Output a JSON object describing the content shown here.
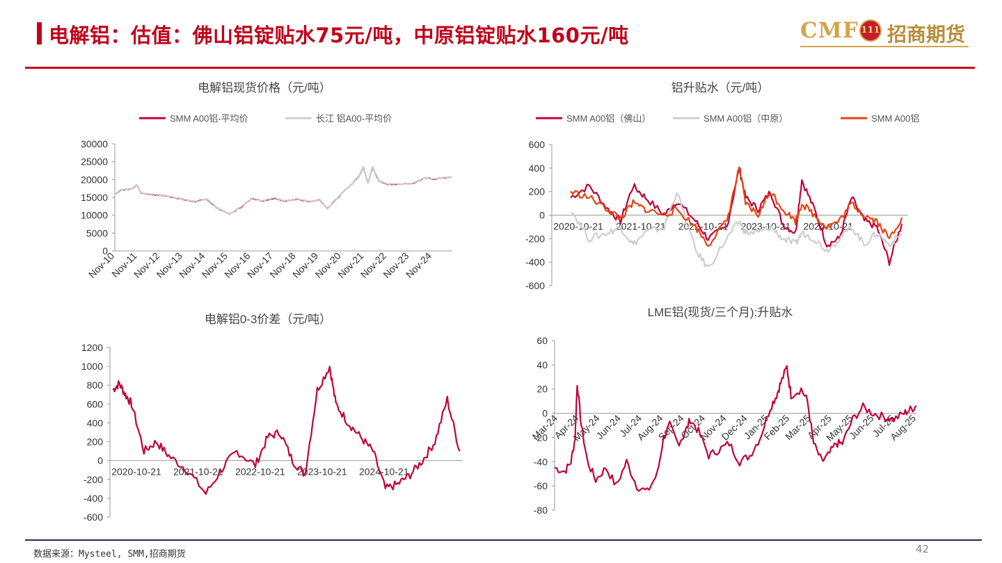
{
  "header": {
    "title": "电解铝：估值：佛山铝锭贴水75元/吨，中原铝锭贴水160元/吨"
  },
  "logo": {
    "brand": "CMF",
    "name": "招商期货"
  },
  "footer": {
    "source": "数据来源：Mysteel, SMM,招商期货",
    "page": "42"
  },
  "colors": {
    "red": "#c0003a",
    "grey": "#cfcfcf",
    "orange": "#e8410b",
    "accent": "#c0001a"
  },
  "chart_data": [
    {
      "id": "c1",
      "type": "line",
      "title": "电解铝现货价格（元/吨）",
      "x_ticks": [
        "Nov-10",
        "Nov-11",
        "Nov-12",
        "Nov-13",
        "Nov-14",
        "Nov-15",
        "Nov-16",
        "Nov-17",
        "Nov-18",
        "Nov-19",
        "Nov-20",
        "Nov-21",
        "Nov-22",
        "Nov-23",
        "Nov-24"
      ],
      "y_ticks": [
        "30000",
        "25000",
        "20000",
        "15000",
        "10000",
        "5000",
        "0"
      ],
      "ylim": [
        0,
        30000
      ],
      "series": [
        {
          "name": "SMM A00铝-平均价",
          "color": "#c0003a",
          "x": [
            2010.83,
            2011.1,
            2011.6,
            2011.8,
            2012.0,
            2012.5,
            2013.0,
            2013.6,
            2014.0,
            2014.4,
            2014.9,
            2015.3,
            2015.9,
            2016.4,
            2016.9,
            2017.3,
            2017.9,
            2018.3,
            2018.9,
            2019.4,
            2019.9,
            2020.2,
            2020.4,
            2020.9,
            2021.3,
            2021.6,
            2021.8,
            2022.0,
            2022.2,
            2022.5,
            2022.9,
            2023.3,
            2023.9,
            2024.3,
            2024.5,
            2024.9,
            2025.3,
            2025.7
          ],
          "y": [
            16000,
            17000,
            17500,
            18500,
            16200,
            15800,
            15500,
            14800,
            14200,
            13800,
            14500,
            12200,
            10300,
            12300,
            14800,
            14000,
            14800,
            14000,
            14400,
            13900,
            14200,
            11800,
            13000,
            16500,
            18800,
            21000,
            23500,
            19000,
            23500,
            19500,
            18700,
            18700,
            18800,
            19800,
            20500,
            20100,
            20500,
            20600
          ]
        },
        {
          "name": "长江 铝A00-平均价",
          "color": "#cfcfcf",
          "x": [
            2010.83,
            2011.1,
            2011.6,
            2011.8,
            2012.0,
            2012.5,
            2013.0,
            2013.6,
            2014.0,
            2014.4,
            2014.9,
            2015.3,
            2015.9,
            2016.4,
            2016.9,
            2017.3,
            2017.9,
            2018.3,
            2018.9,
            2019.4,
            2019.9,
            2020.2,
            2020.4,
            2020.9,
            2021.3,
            2021.6,
            2021.8,
            2022.0,
            2022.2,
            2022.5,
            2022.9,
            2023.3,
            2023.9,
            2024.3,
            2024.5,
            2024.9,
            2025.3,
            2025.7
          ],
          "y": [
            16050,
            17050,
            17550,
            18550,
            16250,
            15850,
            15550,
            14850,
            14250,
            13850,
            14550,
            12250,
            10350,
            12350,
            14850,
            14050,
            14850,
            14050,
            14450,
            13950,
            14250,
            11850,
            13050,
            16550,
            18850,
            21050,
            23550,
            19050,
            23550,
            19550,
            18750,
            18750,
            18850,
            19850,
            20550,
            20150,
            20550,
            20650
          ]
        }
      ]
    },
    {
      "id": "c2",
      "type": "line",
      "title": "铝升贴水（元/吨）",
      "x_ticks": [
        "2020-10-21",
        "2021-10-21",
        "2022-10-21",
        "2023-10-21",
        "2024-10-21"
      ],
      "y_ticks": [
        "600",
        "400",
        "200",
        "0",
        "-200",
        "-400",
        "-600"
      ],
      "ylim": [
        -600,
        600
      ],
      "series": [
        {
          "name": "SMM A00铝（佛山）",
          "color": "#c0003a",
          "x": [
            2020.3,
            2020.6,
            2020.9,
            2021.1,
            2021.3,
            2021.5,
            2021.8,
            2022.0,
            2022.3,
            2022.5,
            2022.8,
            2023.0,
            2023.1,
            2023.3,
            2023.5,
            2023.7,
            2023.9,
            2024.0,
            2024.2,
            2024.4,
            2024.6,
            2024.8,
            2025.0,
            2025.2,
            2025.4,
            2025.6
          ],
          "y": [
            150,
            250,
            50,
            -50,
            250,
            150,
            0,
            120,
            -50,
            -200,
            -100,
            400,
            150,
            50,
            200,
            -80,
            -150,
            300,
            50,
            -250,
            -200,
            150,
            -50,
            -100,
            -400,
            -75
          ]
        },
        {
          "name": "SMM A00铝（中原）",
          "color": "#cfcfcf",
          "x": [
            2020.3,
            2020.6,
            2020.9,
            2021.1,
            2021.3,
            2021.5,
            2021.8,
            2022.0,
            2022.3,
            2022.5,
            2022.8,
            2023.0,
            2023.1,
            2023.3,
            2023.5,
            2023.7,
            2023.9,
            2024.0,
            2024.2,
            2024.4,
            2024.6,
            2024.8,
            2025.0,
            2025.2,
            2025.4,
            2025.6
          ],
          "y": [
            50,
            -200,
            -150,
            -100,
            -250,
            -150,
            -100,
            200,
            -300,
            -450,
            -200,
            -50,
            -150,
            -150,
            -100,
            -200,
            -250,
            -150,
            -200,
            -300,
            -200,
            -100,
            -250,
            -150,
            -250,
            -160
          ]
        },
        {
          "name": "SMM A00铝",
          "color": "#e8410b",
          "x": [
            2020.3,
            2020.6,
            2020.9,
            2021.1,
            2021.3,
            2021.5,
            2021.8,
            2022.0,
            2022.3,
            2022.5,
            2022.8,
            2023.0,
            2023.1,
            2023.3,
            2023.5,
            2023.7,
            2023.9,
            2024.0,
            2024.2,
            2024.4,
            2024.6,
            2024.8,
            2025.0,
            2025.2,
            2025.4,
            2025.6
          ],
          "y": [
            200,
            150,
            50,
            -30,
            100,
            50,
            0,
            50,
            -100,
            -250,
            -50,
            400,
            100,
            0,
            200,
            50,
            -50,
            100,
            0,
            -100,
            -50,
            100,
            0,
            -50,
            -200,
            -20
          ]
        }
      ]
    },
    {
      "id": "c3",
      "type": "line",
      "title": "电解铝0-3价差（元/吨）",
      "x_ticks": [
        "2020-10-21",
        "2021-10-21",
        "2022-10-21",
        "2023-10-21",
        "2024-10-21"
      ],
      "y_ticks": [
        "1200",
        "1000",
        "800",
        "600",
        "400",
        "200",
        "0",
        "-200",
        "-400",
        "-600"
      ],
      "ylim": [
        -600,
        1200
      ],
      "series": [
        {
          "name": "0-3价差",
          "color": "#c0003a",
          "x": [
            2020.0,
            2020.1,
            2020.2,
            2020.3,
            2020.5,
            2020.7,
            2020.9,
            2021.2,
            2021.5,
            2021.8,
            2022.0,
            2022.3,
            2022.5,
            2022.7,
            2022.9,
            2023.1,
            2023.3,
            2023.5,
            2023.6,
            2023.8,
            2024.0,
            2024.2,
            2024.4,
            2024.6,
            2024.8,
            2025.0,
            2025.2,
            2025.4,
            2025.6
          ],
          "y": [
            750,
            820,
            700,
            600,
            100,
            200,
            50,
            -100,
            -350,
            -50,
            100,
            -50,
            250,
            300,
            0,
            -150,
            750,
            1000,
            600,
            400,
            250,
            100,
            -300,
            -250,
            -150,
            0,
            200,
            650,
            100
          ]
        }
      ]
    },
    {
      "id": "c4",
      "type": "line",
      "title": "LME铝(现货/三个月):升贴水",
      "x_ticks": [
        "Mar-24",
        "Apr-24",
        "May-24",
        "Jun-24",
        "Jul-24",
        "Aug-24",
        "Sep-24",
        "Oct-24",
        "Nov-24",
        "Dec-24",
        "Jan-25",
        "Feb-25",
        "Mar-25",
        "Apr-25",
        "May-25",
        "Jun-25",
        "Jul-25",
        "Aug-25"
      ],
      "y_ticks": [
        "60",
        "40",
        "20",
        "0",
        "-20",
        "-40",
        "-60",
        "-80"
      ],
      "ylim": [
        -80,
        60
      ],
      "series": [
        {
          "name": "LME铝升贴水",
          "color": "#c0003a",
          "x": [
            0.0,
            0.5,
            0.8,
            1.0,
            1.1,
            1.3,
            1.6,
            2.0,
            2.5,
            3.0,
            3.5,
            4.0,
            4.5,
            5.0,
            5.3,
            5.6,
            6.0,
            6.3,
            6.6,
            7.0,
            7.5,
            8.0,
            8.5,
            9.0,
            9.5,
            10.0,
            10.5,
            10.8,
            11.0,
            11.3,
            11.5,
            12.0,
            12.3,
            12.6,
            13.0,
            13.3,
            13.7,
            14.0,
            14.5,
            15.0,
            15.5,
            16.0,
            16.5,
            17.0,
            17.3,
            17.6
          ],
          "y": [
            -45,
            -48,
            -40,
            -20,
            25,
            -10,
            -40,
            -55,
            -45,
            -60,
            -40,
            -60,
            -65,
            -50,
            -20,
            -10,
            -25,
            -18,
            -5,
            -15,
            -35,
            -30,
            -25,
            -40,
            -35,
            -20,
            5,
            15,
            25,
            38,
            15,
            20,
            10,
            -25,
            -40,
            -35,
            -25,
            -25,
            -5,
            5,
            0,
            -3,
            -5,
            0,
            3,
            6
          ]
        }
      ]
    }
  ]
}
